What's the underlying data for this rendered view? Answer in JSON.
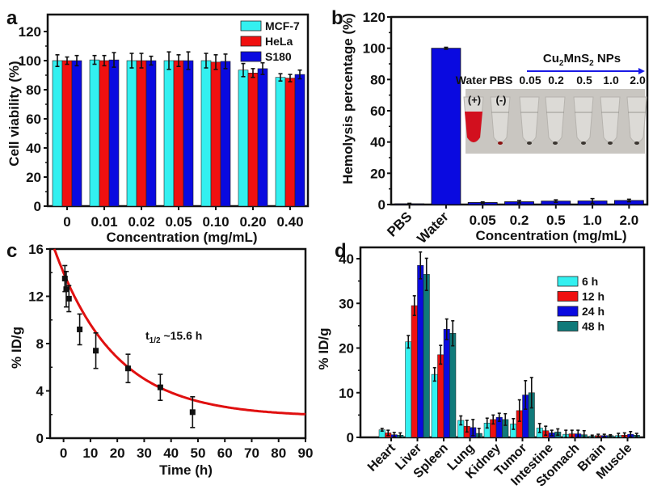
{
  "chart_data": [
    {
      "panel": "a",
      "type": "bar",
      "xlabel": "Concentration (mg/mL)",
      "ylabel": "Cell viability (%)",
      "ylim": [
        0,
        130
      ],
      "yticks": [
        0,
        20,
        40,
        60,
        80,
        100,
        120
      ],
      "categories": [
        "0",
        "0.01",
        "0.02",
        "0.05",
        "0.10",
        "0.20",
        "0.40"
      ],
      "legend_position": "top-right",
      "series": [
        {
          "name": "MCF-7",
          "color": "#33f0f0",
          "values": [
            100,
            100.5,
            100,
            100,
            100,
            93.5,
            88.5
          ],
          "errors": [
            4,
            3,
            5,
            6,
            5,
            4.5,
            2.5
          ]
        },
        {
          "name": "HeLa",
          "color": "#f01010",
          "values": [
            100,
            100,
            100,
            100,
            99,
            91.5,
            88
          ],
          "errors": [
            2.5,
            3.5,
            5,
            4,
            5,
            3,
            2.5
          ]
        },
        {
          "name": "S180",
          "color": "#0a0ae0",
          "values": [
            100,
            100.5,
            100,
            100,
            99.5,
            94.5,
            90.5
          ],
          "errors": [
            3.5,
            5,
            3,
            6,
            5,
            4,
            3
          ]
        }
      ]
    },
    {
      "panel": "b",
      "type": "bar",
      "xlabel": "Concentration (mg/mL)",
      "ylabel": "Hemolysis percentage (%)",
      "ylim": [
        0,
        120
      ],
      "yticks": [
        0,
        20,
        40,
        60,
        80,
        100,
        120
      ],
      "categories": [
        "PBS",
        "Water",
        "0.05",
        "0.2",
        "0.5",
        "1.0",
        "2.0"
      ],
      "series": [
        {
          "name": "Hemolysis",
          "color": "#0a0ae0",
          "values": [
            0.5,
            100,
            1.3,
            1.8,
            2.2,
            2.3,
            2.6
          ],
          "errors": [
            0.3,
            0.6,
            0.4,
            0.8,
            0.8,
            1.5,
            0.8
          ]
        }
      ],
      "inset": {
        "arrow_label": "Cu2MnS2 NPs",
        "tube_labels": [
          "Water",
          "PBS",
          "0.05",
          "0.2",
          "0.5",
          "1.0",
          "2.0"
        ],
        "tube_marks": [
          "(+)",
          "(-)"
        ]
      }
    },
    {
      "panel": "c",
      "type": "scatter",
      "xlabel": "Time (h)",
      "ylabel": "% ID/g",
      "xlim": [
        -5,
        90
      ],
      "ylim": [
        0,
        16
      ],
      "xticks": [
        0,
        10,
        20,
        30,
        40,
        50,
        60,
        70,
        80,
        90
      ],
      "yticks": [
        0,
        4,
        8,
        12,
        16
      ],
      "annotation": "t1/2 ~15.6 h",
      "points": [
        {
          "x": 0.5,
          "y": 13.5,
          "err": 1.1
        },
        {
          "x": 1,
          "y": 12.6,
          "err": 1.5
        },
        {
          "x": 2,
          "y": 11.8,
          "err": 1.1
        },
        {
          "x": 6,
          "y": 9.2,
          "err": 1.3
        },
        {
          "x": 12,
          "y": 7.4,
          "err": 1.5
        },
        {
          "x": 24,
          "y": 5.9,
          "err": 1.2
        },
        {
          "x": 36,
          "y": 4.3,
          "err": 1.1
        },
        {
          "x": 48,
          "y": 2.2,
          "err": 1.3
        }
      ],
      "fit": {
        "type": "exponential_decay",
        "y0": 1.8,
        "A": 12.2,
        "t_half": 15.6,
        "color": "#e01010"
      }
    },
    {
      "panel": "d",
      "type": "bar",
      "ylabel": "% ID/g",
      "ylim": [
        0,
        42
      ],
      "yticks": [
        0,
        10,
        20,
        30,
        40
      ],
      "categories": [
        "Heart",
        "Liver",
        "Spleen",
        "Lung",
        "Kidney",
        "Tumor",
        "Intestine",
        "Stomach",
        "Brain",
        "Muscle"
      ],
      "legend_position": "top-right",
      "series": [
        {
          "name": "6 h",
          "color": "#33f0f0",
          "values": [
            1.7,
            21.4,
            14.1,
            3.8,
            3.2,
            3.0,
            2.1,
            0.7,
            0.3,
            0.4
          ],
          "errors": [
            0.3,
            1.4,
            1.5,
            1.0,
            1.1,
            1.2,
            1.0,
            0.9,
            0.2,
            0.5
          ]
        },
        {
          "name": "12 h",
          "color": "#f01010",
          "values": [
            1.0,
            29.5,
            18.5,
            2.5,
            4.0,
            6.0,
            1.5,
            0.8,
            0.4,
            0.5
          ],
          "errors": [
            0.6,
            2.2,
            2.1,
            1.3,
            1.0,
            2.4,
            1.0,
            0.8,
            0.3,
            0.5
          ]
        },
        {
          "name": "24 h",
          "color": "#0a0ae0",
          "values": [
            0.6,
            38.5,
            24.2,
            2.2,
            4.5,
            9.5,
            1.0,
            0.8,
            0.4,
            0.7
          ],
          "errors": [
            0.5,
            3.0,
            2.3,
            1.8,
            0.9,
            3.2,
            0.6,
            0.8,
            0.3,
            0.6
          ]
        },
        {
          "name": "48 h",
          "color": "#107a7a",
          "values": [
            0.5,
            36.5,
            23.3,
            0.9,
            4.0,
            10.0,
            1.2,
            0.6,
            0.4,
            0.5
          ],
          "errors": [
            0.5,
            3.6,
            2.8,
            1.1,
            1.3,
            3.4,
            0.7,
            0.9,
            0.2,
            0.4
          ]
        }
      ]
    }
  ],
  "panel_letters": [
    "a",
    "b",
    "c",
    "d"
  ]
}
